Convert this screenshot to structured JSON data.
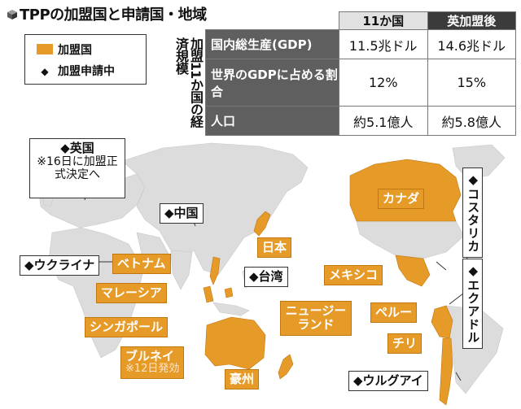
{
  "title": "TPPの加盟国と申請国・地域",
  "legend": {
    "member": "加盟国",
    "applicant": "加盟申請中",
    "member_color": "#E69A27",
    "applicant_marker": "◆"
  },
  "stats": {
    "side_label": "加盟11か国の経済規模",
    "col_11": "11か国",
    "col_uk": "英加盟後",
    "rows": [
      {
        "label": "国内総生産(GDP)",
        "v11": "11.5兆ドル",
        "vuk": "14.6兆ドル"
      },
      {
        "label": "世界のGDPに占める割合",
        "v11": "12%",
        "vuk": "15%"
      },
      {
        "label": "人口",
        "v11": "約5.1億人",
        "vuk": "約5.8億人"
      }
    ]
  },
  "map": {
    "land_color": "#dcdcdc",
    "member_fill": "#E69A27",
    "members": {
      "japan": "日本",
      "vietnam": "ベトナム",
      "malaysia": "マレーシア",
      "singapore": "シンガポール",
      "brunei": "ブルネイ",
      "brunei_note": "※12日発効",
      "australia": "豪州",
      "new_zealand": "ニュージーランド",
      "canada": "カナダ",
      "mexico": "メキシコ",
      "peru": "ペルー",
      "chile": "チリ"
    },
    "applicants": {
      "uk": "◆英国",
      "uk_note": "※16日に加盟正式決定へ",
      "china": "◆中国",
      "ukraine": "◆ウクライナ",
      "taiwan": "◆台湾",
      "costa_rica": "◆コスタリカ",
      "ecuador": "◆エクアドル",
      "uruguay": "◆ウルグアイ"
    }
  }
}
